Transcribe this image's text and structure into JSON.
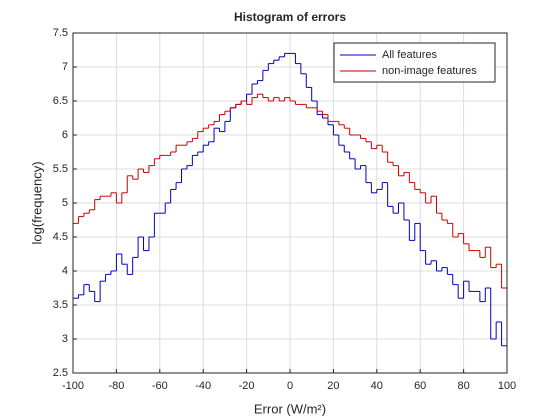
{
  "chart_data": {
    "type": "histogram",
    "title": "Histogram of errors",
    "xlabel": "Error (W/m²)",
    "ylabel": "log(frequency)",
    "bins": [
      -100,
      -97.5,
      -95,
      -92.5,
      -90,
      -87.5,
      -85,
      -82.5,
      -80,
      -77.5,
      -75,
      -72.5,
      -70,
      -67.5,
      -65,
      -62.5,
      -60,
      -57.5,
      -55,
      -52.5,
      -50,
      -47.5,
      -45,
      -42.5,
      -40,
      -37.5,
      -35,
      -32.5,
      -30,
      -27.5,
      -25,
      -22.5,
      -20,
      -17.5,
      -15,
      -12.5,
      -10,
      -7.5,
      -5,
      -2.5,
      0,
      2.5,
      5,
      7.5,
      10,
      12.5,
      15,
      17.5,
      20,
      22.5,
      25,
      27.5,
      30,
      32.5,
      35,
      37.5,
      40,
      42.5,
      45,
      47.5,
      50,
      52.5,
      55,
      57.5,
      60,
      62.5,
      65,
      67.5,
      70,
      72.5,
      75,
      77.5,
      80,
      82.5,
      85,
      87.5,
      90,
      92.5,
      95,
      97.5,
      100
    ],
    "series": [
      {
        "name": "All features",
        "color": "#0000c0",
        "values": [
          3.6,
          3.65,
          3.8,
          3.7,
          3.55,
          3.85,
          3.95,
          4.0,
          4.25,
          4.1,
          3.95,
          4.2,
          4.5,
          4.3,
          4.5,
          4.85,
          4.85,
          5.0,
          5.2,
          5.3,
          5.5,
          5.55,
          5.7,
          5.75,
          5.85,
          5.9,
          6.1,
          6.05,
          6.2,
          6.4,
          6.45,
          6.5,
          6.6,
          6.75,
          6.8,
          6.95,
          7.05,
          7.1,
          7.15,
          7.2,
          7.2,
          7.05,
          6.9,
          6.7,
          6.5,
          6.3,
          6.25,
          6.15,
          6.0,
          5.85,
          5.75,
          5.65,
          5.5,
          5.55,
          5.3,
          5.15,
          5.2,
          5.3,
          4.95,
          4.85,
          5.0,
          4.75,
          4.45,
          4.7,
          4.3,
          4.1,
          4.15,
          4.0,
          4.05,
          3.95,
          3.8,
          3.6,
          3.85,
          3.7,
          3.7,
          3.55,
          3.75,
          3.0,
          3.25,
          2.9
        ]
      },
      {
        "name": "non-image features",
        "color": "#cc0000",
        "values": [
          4.7,
          4.8,
          4.85,
          4.9,
          5.05,
          5.1,
          5.1,
          5.15,
          5.0,
          5.15,
          5.4,
          5.35,
          5.5,
          5.45,
          5.55,
          5.65,
          5.7,
          5.7,
          5.75,
          5.85,
          5.85,
          5.9,
          5.95,
          6.05,
          6.1,
          6.15,
          6.2,
          6.3,
          6.35,
          6.4,
          6.45,
          6.5,
          6.45,
          6.55,
          6.6,
          6.55,
          6.5,
          6.55,
          6.5,
          6.55,
          6.5,
          6.45,
          6.45,
          6.4,
          6.4,
          6.35,
          6.3,
          6.2,
          6.2,
          6.15,
          6.1,
          6.0,
          6.0,
          5.95,
          5.9,
          5.8,
          5.85,
          5.75,
          5.6,
          5.55,
          5.4,
          5.45,
          5.3,
          5.2,
          5.15,
          5.0,
          5.1,
          4.85,
          4.75,
          4.7,
          4.5,
          4.55,
          4.4,
          4.3,
          4.3,
          4.2,
          4.35,
          4.05,
          4.1,
          3.75
        ]
      }
    ],
    "xlim": [
      -100,
      100
    ],
    "xticks": [
      -100,
      -80,
      -60,
      -40,
      -20,
      0,
      20,
      40,
      60,
      80,
      100
    ],
    "ylim": [
      2.5,
      7.5
    ],
    "yticks": [
      2.5,
      3,
      3.5,
      4,
      4.5,
      5,
      5.5,
      6,
      6.5,
      7,
      7.5
    ],
    "grid": true,
    "legend": "northeast"
  }
}
